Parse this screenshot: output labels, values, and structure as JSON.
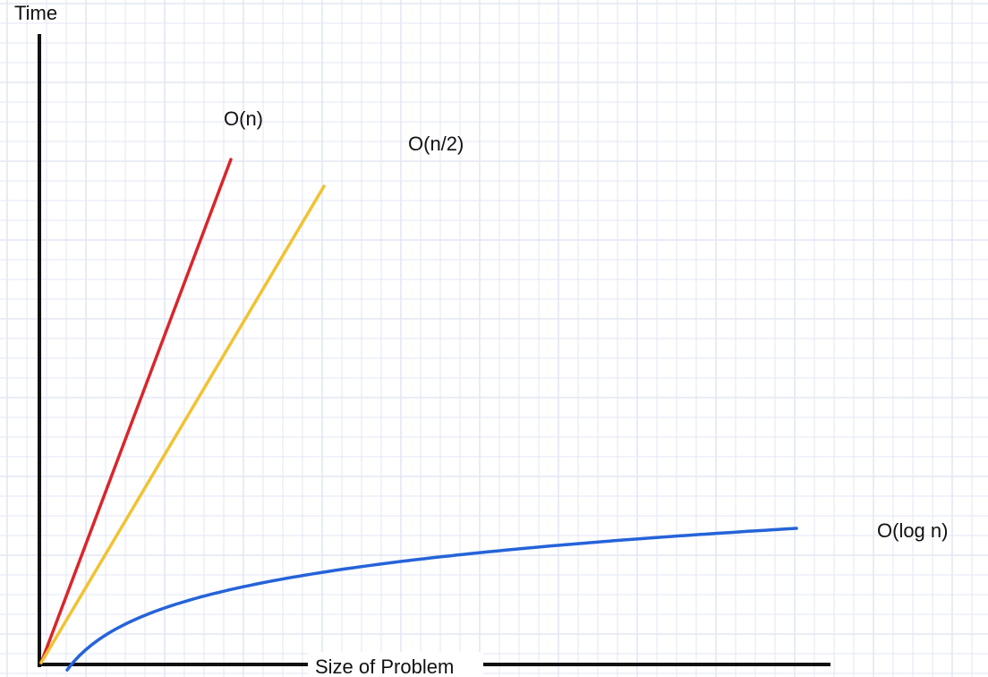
{
  "chart_data": {
    "type": "line",
    "title": "",
    "xlabel": "Size of Problem",
    "ylabel": "Time",
    "grid": true,
    "series": [
      {
        "name": "O(n)",
        "color": "#d9262b",
        "function": "n",
        "x": [
          0,
          1
        ],
        "y": [
          0,
          1
        ]
      },
      {
        "name": "O(n/2)",
        "color": "#f2c231",
        "function": "n/2",
        "x": [
          0,
          2
        ],
        "y": [
          0,
          1
        ]
      },
      {
        "name": "O(log n)",
        "color": "#2563d9",
        "function": "log n"
      }
    ],
    "colors": {
      "axis": "#111111",
      "grid": "#e3e7f4"
    }
  }
}
